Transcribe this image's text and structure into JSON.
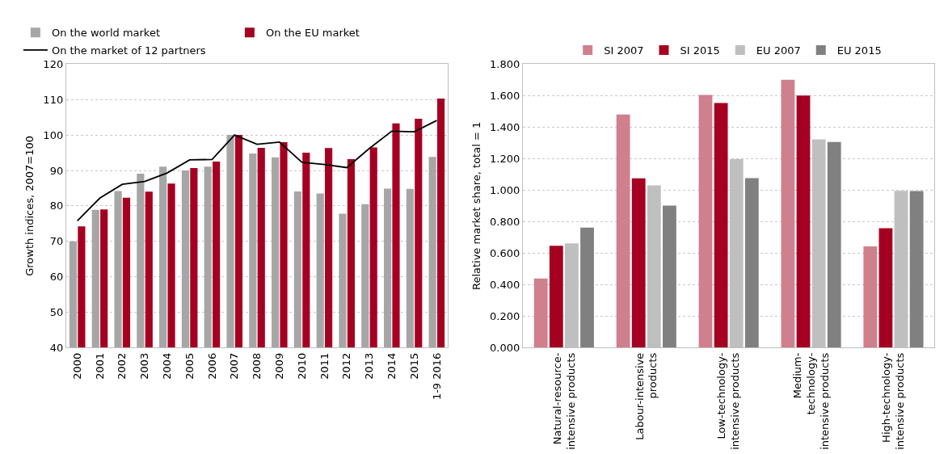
{
  "chart_data": [
    {
      "type": "bar",
      "ylabel": "Growth indices, 2007=100",
      "categories": [
        "2000",
        "2001",
        "2002",
        "2003",
        "2004",
        "2005",
        "2006",
        "2007",
        "2008",
        "2009",
        "2010",
        "2011",
        "2012",
        "2013",
        "2014",
        "2015",
        "1-9 2016"
      ],
      "series": [
        {
          "name": "On the world market",
          "color": "#a6a6a6",
          "values": [
            70,
            78.9,
            84.2,
            89.1,
            91.1,
            90,
            91.1,
            100,
            94.8,
            93.7,
            84.1,
            83.5,
            77.8,
            80.5,
            84.9,
            84.8,
            93.8
          ]
        },
        {
          "name": "On the EU market",
          "color": "#a50021",
          "values": [
            74.2,
            79,
            82.3,
            84,
            86.3,
            90.7,
            92.5,
            100,
            96.4,
            98,
            95,
            96.3,
            93.2,
            96.5,
            103.3,
            104.6,
            110.3
          ]
        },
        {
          "name": "On the market of 12 partners",
          "type": "line",
          "color": "#000000",
          "values": [
            75.8,
            82.2,
            86.1,
            86.9,
            89.3,
            93,
            93.1,
            100,
            97.4,
            98,
            92.3,
            91.7,
            90.8,
            96.2,
            101.1,
            100.9,
            104.1
          ]
        }
      ],
      "ylim": [
        40,
        120
      ],
      "yticks": [
        40,
        50,
        60,
        70,
        80,
        90,
        100,
        110,
        120
      ],
      "grid": "y",
      "legend": "top",
      "marker": "none",
      "line_style": "solid"
    },
    {
      "type": "bar",
      "ylabel": "Relative market share, total = 1",
      "categories": [
        "Natural-resource-\nintensive products",
        "Labour-intensive\nproducts",
        "Low-technology-\nintensive products",
        "Medium-\ntechnology-\nintensive products",
        "High-technology-\nintensive products"
      ],
      "series": [
        {
          "name": "SI 2007",
          "color": "#d07f8c",
          "values": [
            0.44,
            1.48,
            1.605,
            1.7,
            0.643
          ]
        },
        {
          "name": "SI 2015",
          "color": "#a50021",
          "values": [
            0.647,
            1.075,
            1.553,
            1.6,
            0.758
          ]
        },
        {
          "name": "EU 2007",
          "color": "#bfbfbf",
          "values": [
            0.662,
            1.03,
            1.197,
            1.323,
            0.996
          ]
        },
        {
          "name": "EU 2015",
          "color": "#808080",
          "values": [
            0.762,
            0.902,
            1.076,
            1.306,
            0.994
          ]
        }
      ],
      "ylim": [
        0,
        1.8
      ],
      "yticks": [
        {
          "value": 0,
          "label": "0.000"
        },
        {
          "value": 0.2,
          "label": "0.200"
        },
        {
          "value": 0.4,
          "label": "0.400"
        },
        {
          "value": 0.6,
          "label": "0.600"
        },
        {
          "value": 0.8,
          "label": "0.800"
        },
        {
          "value": 1,
          "label": "1.000"
        },
        {
          "value": 1.2,
          "label": "1.200"
        },
        {
          "value": 1.4,
          "label": "1.400"
        },
        {
          "value": 1.6,
          "label": "1.600"
        },
        {
          "value": 1.8,
          "label": "1.800"
        }
      ],
      "grid": "y",
      "legend": "top"
    }
  ]
}
